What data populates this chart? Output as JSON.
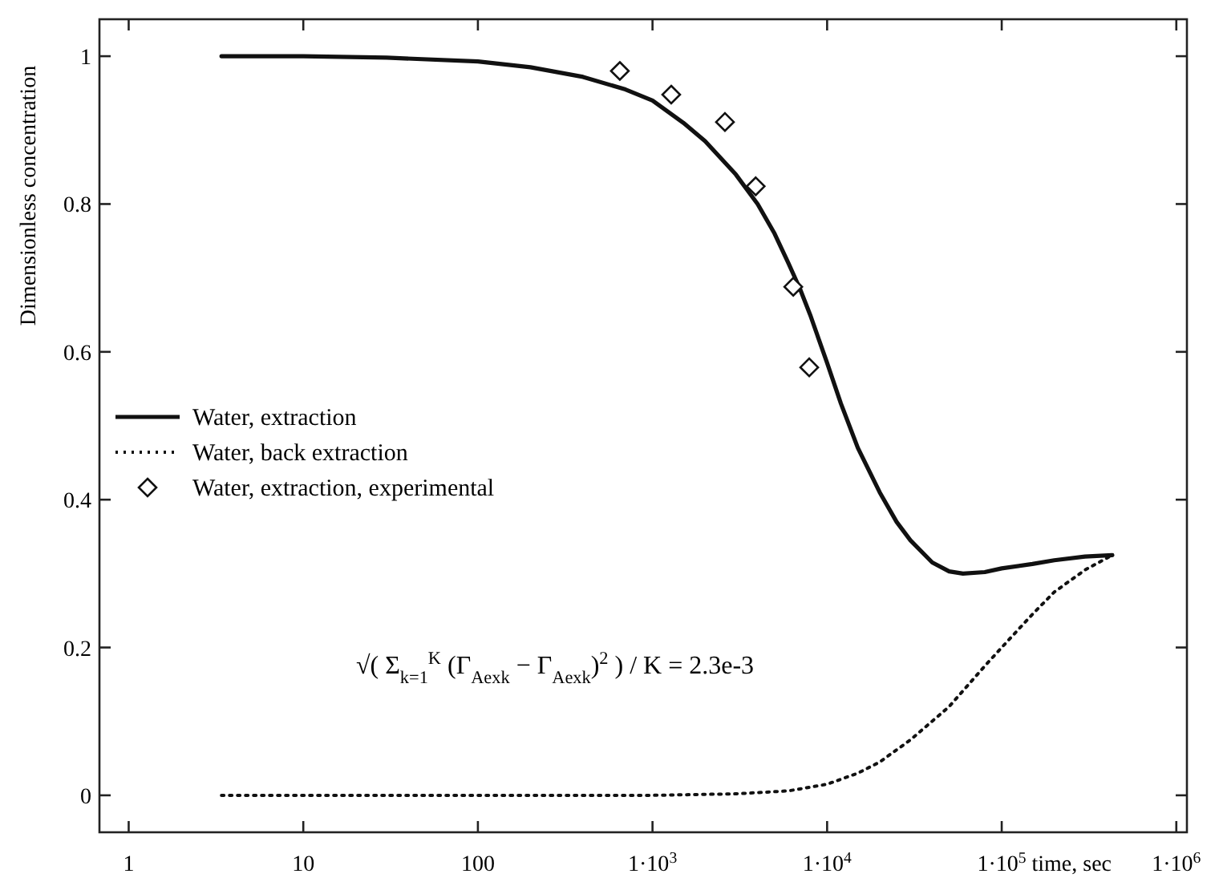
{
  "chart_data": {
    "type": "line",
    "ylabel": "Dimensionless concentration",
    "xlabel": "time, sec",
    "log": "x",
    "xlim": [
      0.68,
      1150000
    ],
    "xticks": [
      1,
      10,
      100,
      {
        "value": 1000,
        "label": "1·10$^{3}$"
      },
      {
        "value": 10000,
        "label": "1·10$^{4}$"
      },
      {
        "value": 100000,
        "label": "1·10$^{5}$"
      },
      {
        "value": 1000000,
        "label": "1·10$^{6}$"
      }
    ],
    "ylim": [
      -0.05,
      1.05
    ],
    "yticks": [
      0,
      0.2,
      0.4,
      0.6,
      0.8,
      1
    ],
    "grid": false,
    "legend": "left",
    "series": [
      {
        "name": "Water, extraction",
        "color": "#111111",
        "line_style": "solid",
        "marker": "none",
        "x": [
          3.4,
          10,
          30,
          100,
          200,
          400,
          700,
          1000,
          1500,
          2000,
          3000,
          4000,
          5000,
          6000,
          7000,
          8000,
          10000,
          12000,
          15000,
          20000,
          25000,
          30000,
          40000,
          50000,
          60000,
          80000,
          100000,
          150000,
          200000,
          300000,
          430000
        ],
        "values": [
          1.0,
          1.0,
          0.998,
          0.993,
          0.985,
          0.972,
          0.955,
          0.94,
          0.91,
          0.885,
          0.84,
          0.8,
          0.76,
          0.72,
          0.685,
          0.65,
          0.585,
          0.53,
          0.47,
          0.41,
          0.37,
          0.345,
          0.315,
          0.303,
          0.3,
          0.302,
          0.307,
          0.313,
          0.318,
          0.323,
          0.325
        ]
      },
      {
        "name": "Water, back extraction",
        "color": "#111111",
        "line_style": "dotted",
        "marker": "none",
        "x": [
          3.4,
          1000,
          3000,
          6000,
          10000,
          15000,
          20000,
          30000,
          50000,
          80000,
          100000,
          150000,
          200000,
          300000,
          430000
        ],
        "values": [
          0,
          0,
          0.002,
          0.006,
          0.015,
          0.03,
          0.045,
          0.075,
          0.12,
          0.175,
          0.2,
          0.245,
          0.275,
          0.305,
          0.325
        ]
      },
      {
        "name": "Water, extraction, experimental",
        "color": "#111111",
        "type": "scatter",
        "marker": "diamond",
        "x": [
          650,
          1280,
          2600,
          3900,
          6400,
          7900
        ],
        "values": [
          0.98,
          0.948,
          0.911,
          0.824,
          0.688,
          0.579
        ]
      }
    ],
    "annotations": [
      "√( Σ$_{k=1}$$^{K}$ (Γ$_{Aexk}$ − Γ$_{Aexk}$)$^{2}$ ) / K = 2.3e-3"
    ]
  }
}
